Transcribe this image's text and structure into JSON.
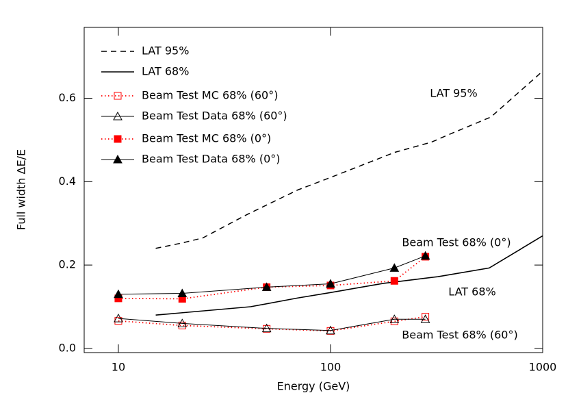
{
  "chart_data": {
    "type": "line",
    "xlabel": "Energy (GeV)",
    "ylabel": "Full width ΔE/E",
    "xscale": "log",
    "xlim": [
      6.9,
      1000
    ],
    "ylim": [
      -0.01,
      0.77
    ],
    "xticks": [
      10,
      100,
      1000
    ],
    "yticks": [
      {
        "value": 0,
        "label": "0.0"
      },
      0.2,
      0.4,
      0.6
    ],
    "legend": "upper left",
    "series": [
      {
        "name": "LAT 95%",
        "color": "#000000",
        "dash": "dashed",
        "marker": "none",
        "x": [
          15,
          20,
          25,
          40,
          70,
          100,
          200,
          300,
          350,
          570,
          1000
        ],
        "values": [
          0.24,
          0.253,
          0.265,
          0.32,
          0.38,
          0.41,
          0.47,
          0.495,
          0.51,
          0.555,
          0.665
        ]
      },
      {
        "name": "LAT 68%",
        "color": "#000000",
        "dash": "solid",
        "marker": "none",
        "x": [
          15,
          42,
          70,
          100,
          177,
          320,
          560,
          1000
        ],
        "values": [
          0.08,
          0.1,
          0.121,
          0.134,
          0.156,
          0.172,
          0.193,
          0.27
        ]
      },
      {
        "name": "Beam Test MC 68% (60°)",
        "color": "#ff0000",
        "dash": "dotted",
        "marker": "square-open",
        "x": [
          10,
          20,
          50,
          100,
          200,
          280
        ],
        "values": [
          0.066,
          0.055,
          0.047,
          0.042,
          0.065,
          0.076
        ]
      },
      {
        "name": "Beam Test Data 68% (60°)",
        "color": "#000000",
        "dash": "thin",
        "marker": "triangle-open",
        "x": [
          10,
          20,
          50,
          100,
          200,
          280
        ],
        "values": [
          0.072,
          0.06,
          0.048,
          0.043,
          0.07,
          0.07
        ]
      },
      {
        "name": "Beam Test MC 68% (0°)",
        "color": "#ff0000",
        "dash": "dotted",
        "marker": "square-filled",
        "x": [
          10,
          20,
          50,
          100,
          200,
          280
        ],
        "values": [
          0.12,
          0.119,
          0.147,
          0.151,
          0.162,
          0.22
        ]
      },
      {
        "name": "Beam Test Data 68% (0°)",
        "color": "#000000",
        "dash": "thin",
        "marker": "triangle-filled",
        "x": [
          10,
          20,
          50,
          100,
          200,
          280
        ],
        "values": [
          0.13,
          0.132,
          0.147,
          0.155,
          0.193,
          0.222
        ]
      }
    ],
    "annotations": [
      "LAT 95%",
      "Beam Test 68% (0°)",
      "LAT 68%",
      "Beam Test 68% (60°)"
    ]
  }
}
